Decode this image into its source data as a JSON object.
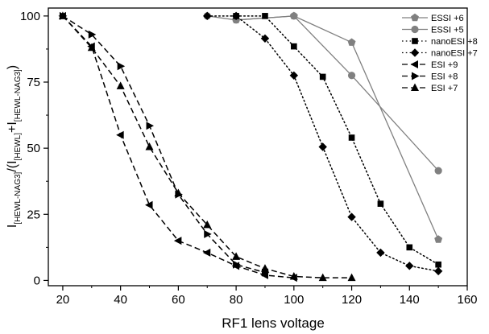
{
  "chart_data": {
    "type": "line",
    "xlabel": "RF1 lens voltage",
    "ylabel": {
      "main": "I",
      "sub1": "[HEWL-NAG3]",
      "mid": "/(I",
      "sub2": "[HEWL]",
      "plus": "+I",
      "sub3": "[HEWL-NAG3]",
      "close": ")"
    },
    "xlim": [
      15,
      160
    ],
    "ylim": [
      -2,
      103
    ],
    "xticks": [
      20,
      40,
      60,
      80,
      100,
      120,
      140,
      160
    ],
    "yticks": [
      0,
      25,
      50,
      75,
      100
    ],
    "grid": false,
    "legend_position": "top-right",
    "series": [
      {
        "name": "ESSI +6",
        "color": "#808080",
        "marker": "pentagon",
        "dash": "solid",
        "x": [
          80,
          100,
          120,
          150
        ],
        "y": [
          98.5,
          100,
          90,
          15.5
        ]
      },
      {
        "name": "ESSI +5",
        "color": "#808080",
        "marker": "circle",
        "dash": "solid",
        "x": [
          70,
          80,
          100,
          120,
          150
        ],
        "y": [
          100,
          98.5,
          100,
          77.5,
          41.5
        ]
      },
      {
        "name": "nanoESI +8",
        "color": "#000000",
        "marker": "square",
        "dash": "dot",
        "x": [
          80,
          90,
          100,
          110,
          120,
          130,
          140,
          150
        ],
        "y": [
          100,
          100,
          88.5,
          77,
          54,
          29,
          12.5,
          6
        ]
      },
      {
        "name": "nanoESI +7",
        "color": "#000000",
        "marker": "diamond",
        "dash": "dot",
        "x": [
          70,
          80,
          90,
          100,
          110,
          120,
          130,
          140,
          150
        ],
        "y": [
          100,
          100,
          91.5,
          77.5,
          50.5,
          24,
          10.5,
          5.5,
          3.5
        ]
      },
      {
        "name": "ESI +9",
        "color": "#000000",
        "marker": "triangle-left",
        "dash": "dash",
        "x": [
          20,
          30,
          40,
          50,
          60,
          70,
          80,
          90,
          100
        ],
        "y": [
          100,
          88.5,
          55,
          28.5,
          15,
          10.5,
          5.5,
          2,
          1
        ]
      },
      {
        "name": "ESI +8",
        "color": "#000000",
        "marker": "triangle-right",
        "dash": "dash",
        "x": [
          20,
          30,
          40,
          50,
          60,
          70,
          80,
          90
        ],
        "y": [
          100,
          93,
          81,
          58.5,
          32.5,
          17.5,
          6,
          3
        ]
      },
      {
        "name": "ESI +7",
        "color": "#000000",
        "marker": "triangle-up",
        "dash": "dash",
        "x": [
          20,
          30,
          40,
          50,
          60,
          70,
          80,
          90,
          100,
          110,
          120
        ],
        "y": [
          100,
          88,
          73.5,
          50.5,
          33,
          21,
          9,
          4.5,
          1.5,
          1,
          1
        ]
      }
    ]
  }
}
